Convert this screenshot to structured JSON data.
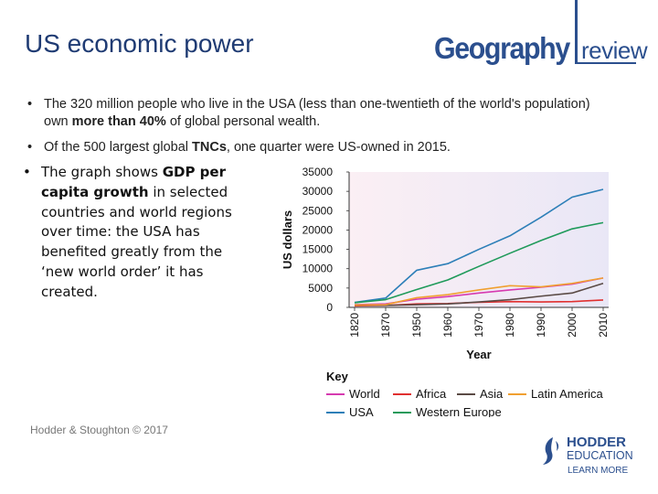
{
  "slide": {
    "title": "US economic power",
    "logo": {
      "geo": "Geography",
      "rev": "review"
    },
    "bullets": [
      {
        "marker": "•",
        "parts": [
          "The 320 million people who live in the USA (less than one-twentieth of the world's population) own ",
          "more than 40%",
          " of global personal wealth."
        ]
      },
      {
        "marker": "•",
        "parts": [
          "Of the 500 largest global ",
          "TNCs",
          ", one quarter were US-owned in 2015."
        ]
      }
    ],
    "side_note": {
      "marker": "•",
      "parts": [
        "The graph shows ",
        "GDP per capita growth",
        " in selected countries and world regions over time: the USA has benefited greatly from the ‘new world order’ it has created."
      ]
    },
    "footer": "Hodder & Stoughton © 2017",
    "publisher": {
      "name": "HODDER",
      "sub": "EDUCATION",
      "tag": "LEARN MORE"
    }
  },
  "colors": {
    "title": "#1f3b73",
    "brand": "#2b4f8e",
    "World": "#d63ab0",
    "Africa": "#e03030",
    "Asia": "#5a4a45",
    "Latin America": "#f0a030",
    "USA": "#2d7fb8",
    "Western Europe": "#1f9a5a"
  },
  "chart_data": {
    "type": "line",
    "ylabel": "US dollars",
    "xlabel": "Year",
    "ylim": [
      0,
      35000
    ],
    "yticks": [
      0,
      5000,
      10000,
      15000,
      20000,
      25000,
      30000,
      35000
    ],
    "x": [
      "1820",
      "1870",
      "1950",
      "1960",
      "1970",
      "1980",
      "1990",
      "2000",
      "2010"
    ],
    "legend_title": "Key",
    "legend_position": "bottom",
    "series": [
      {
        "name": "World",
        "values": [
          700,
          900,
          2100,
          2800,
          3700,
          4500,
          5200,
          6000,
          7600
        ]
      },
      {
        "name": "Africa",
        "values": [
          400,
          500,
          900,
          1000,
          1300,
          1500,
          1400,
          1500,
          1900
        ]
      },
      {
        "name": "Asia",
        "values": [
          600,
          500,
          700,
          900,
          1400,
          2000,
          2900,
          3700,
          6200
        ]
      },
      {
        "name": "Latin America",
        "values": [
          600,
          700,
          2500,
          3300,
          4500,
          5600,
          5300,
          6200,
          7600
        ]
      },
      {
        "name": "USA",
        "values": [
          1300,
          2400,
          9600,
          11300,
          15000,
          18500,
          23300,
          28500,
          30500
        ]
      },
      {
        "name": "Western Europe",
        "values": [
          1200,
          2000,
          4600,
          7100,
          10600,
          14000,
          17300,
          20300,
          21900
        ]
      }
    ]
  }
}
